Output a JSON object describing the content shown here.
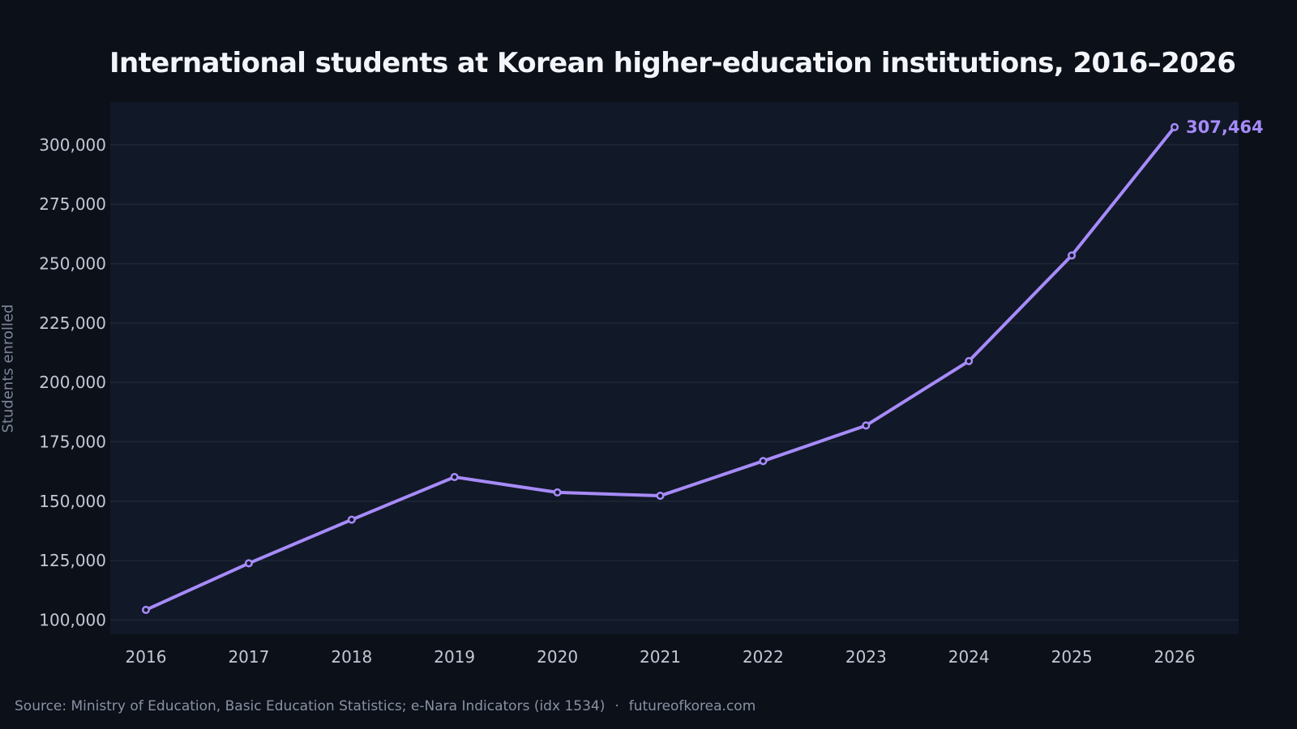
{
  "chart_data": {
    "type": "line",
    "title": "International students at Korean higher-education institutions, 2016–2026",
    "xlabel": "",
    "ylabel": "Students enrolled",
    "x": [
      2016,
      2017,
      2018,
      2019,
      2020,
      2021,
      2022,
      2023,
      2024,
      2025,
      2026
    ],
    "series": [
      {
        "values": [
          104262,
          123858,
          142205,
          160165,
          153695,
          152281,
          166892,
          181842,
          208962,
          253434,
          307464
        ],
        "color": "#a78bfa"
      }
    ],
    "ylim": [
      94000,
      318000
    ],
    "y_ticks": [
      100000,
      125000,
      150000,
      175000,
      200000,
      225000,
      250000,
      275000,
      300000
    ],
    "y_tick_labels": [
      "100,000",
      "125,000",
      "150,000",
      "175,000",
      "200,000",
      "225,000",
      "250,000",
      "275,000",
      "300,000"
    ],
    "x_tick_labels": [
      "2016",
      "2017",
      "2018",
      "2019",
      "2020",
      "2021",
      "2022",
      "2023",
      "2024",
      "2025",
      "2026"
    ],
    "end_label": "307,464",
    "grid": true,
    "legend": "none",
    "colors": {
      "background": "#0b1019",
      "plot_background": "#111827",
      "grid": "#1f2736",
      "line": "#a78bfa"
    }
  },
  "footer": {
    "source": "Source: Ministry of Education, Basic Education Statistics; e-Nara Indicators (idx 1534)",
    "separator": "·",
    "site": "futureofkorea.com"
  }
}
